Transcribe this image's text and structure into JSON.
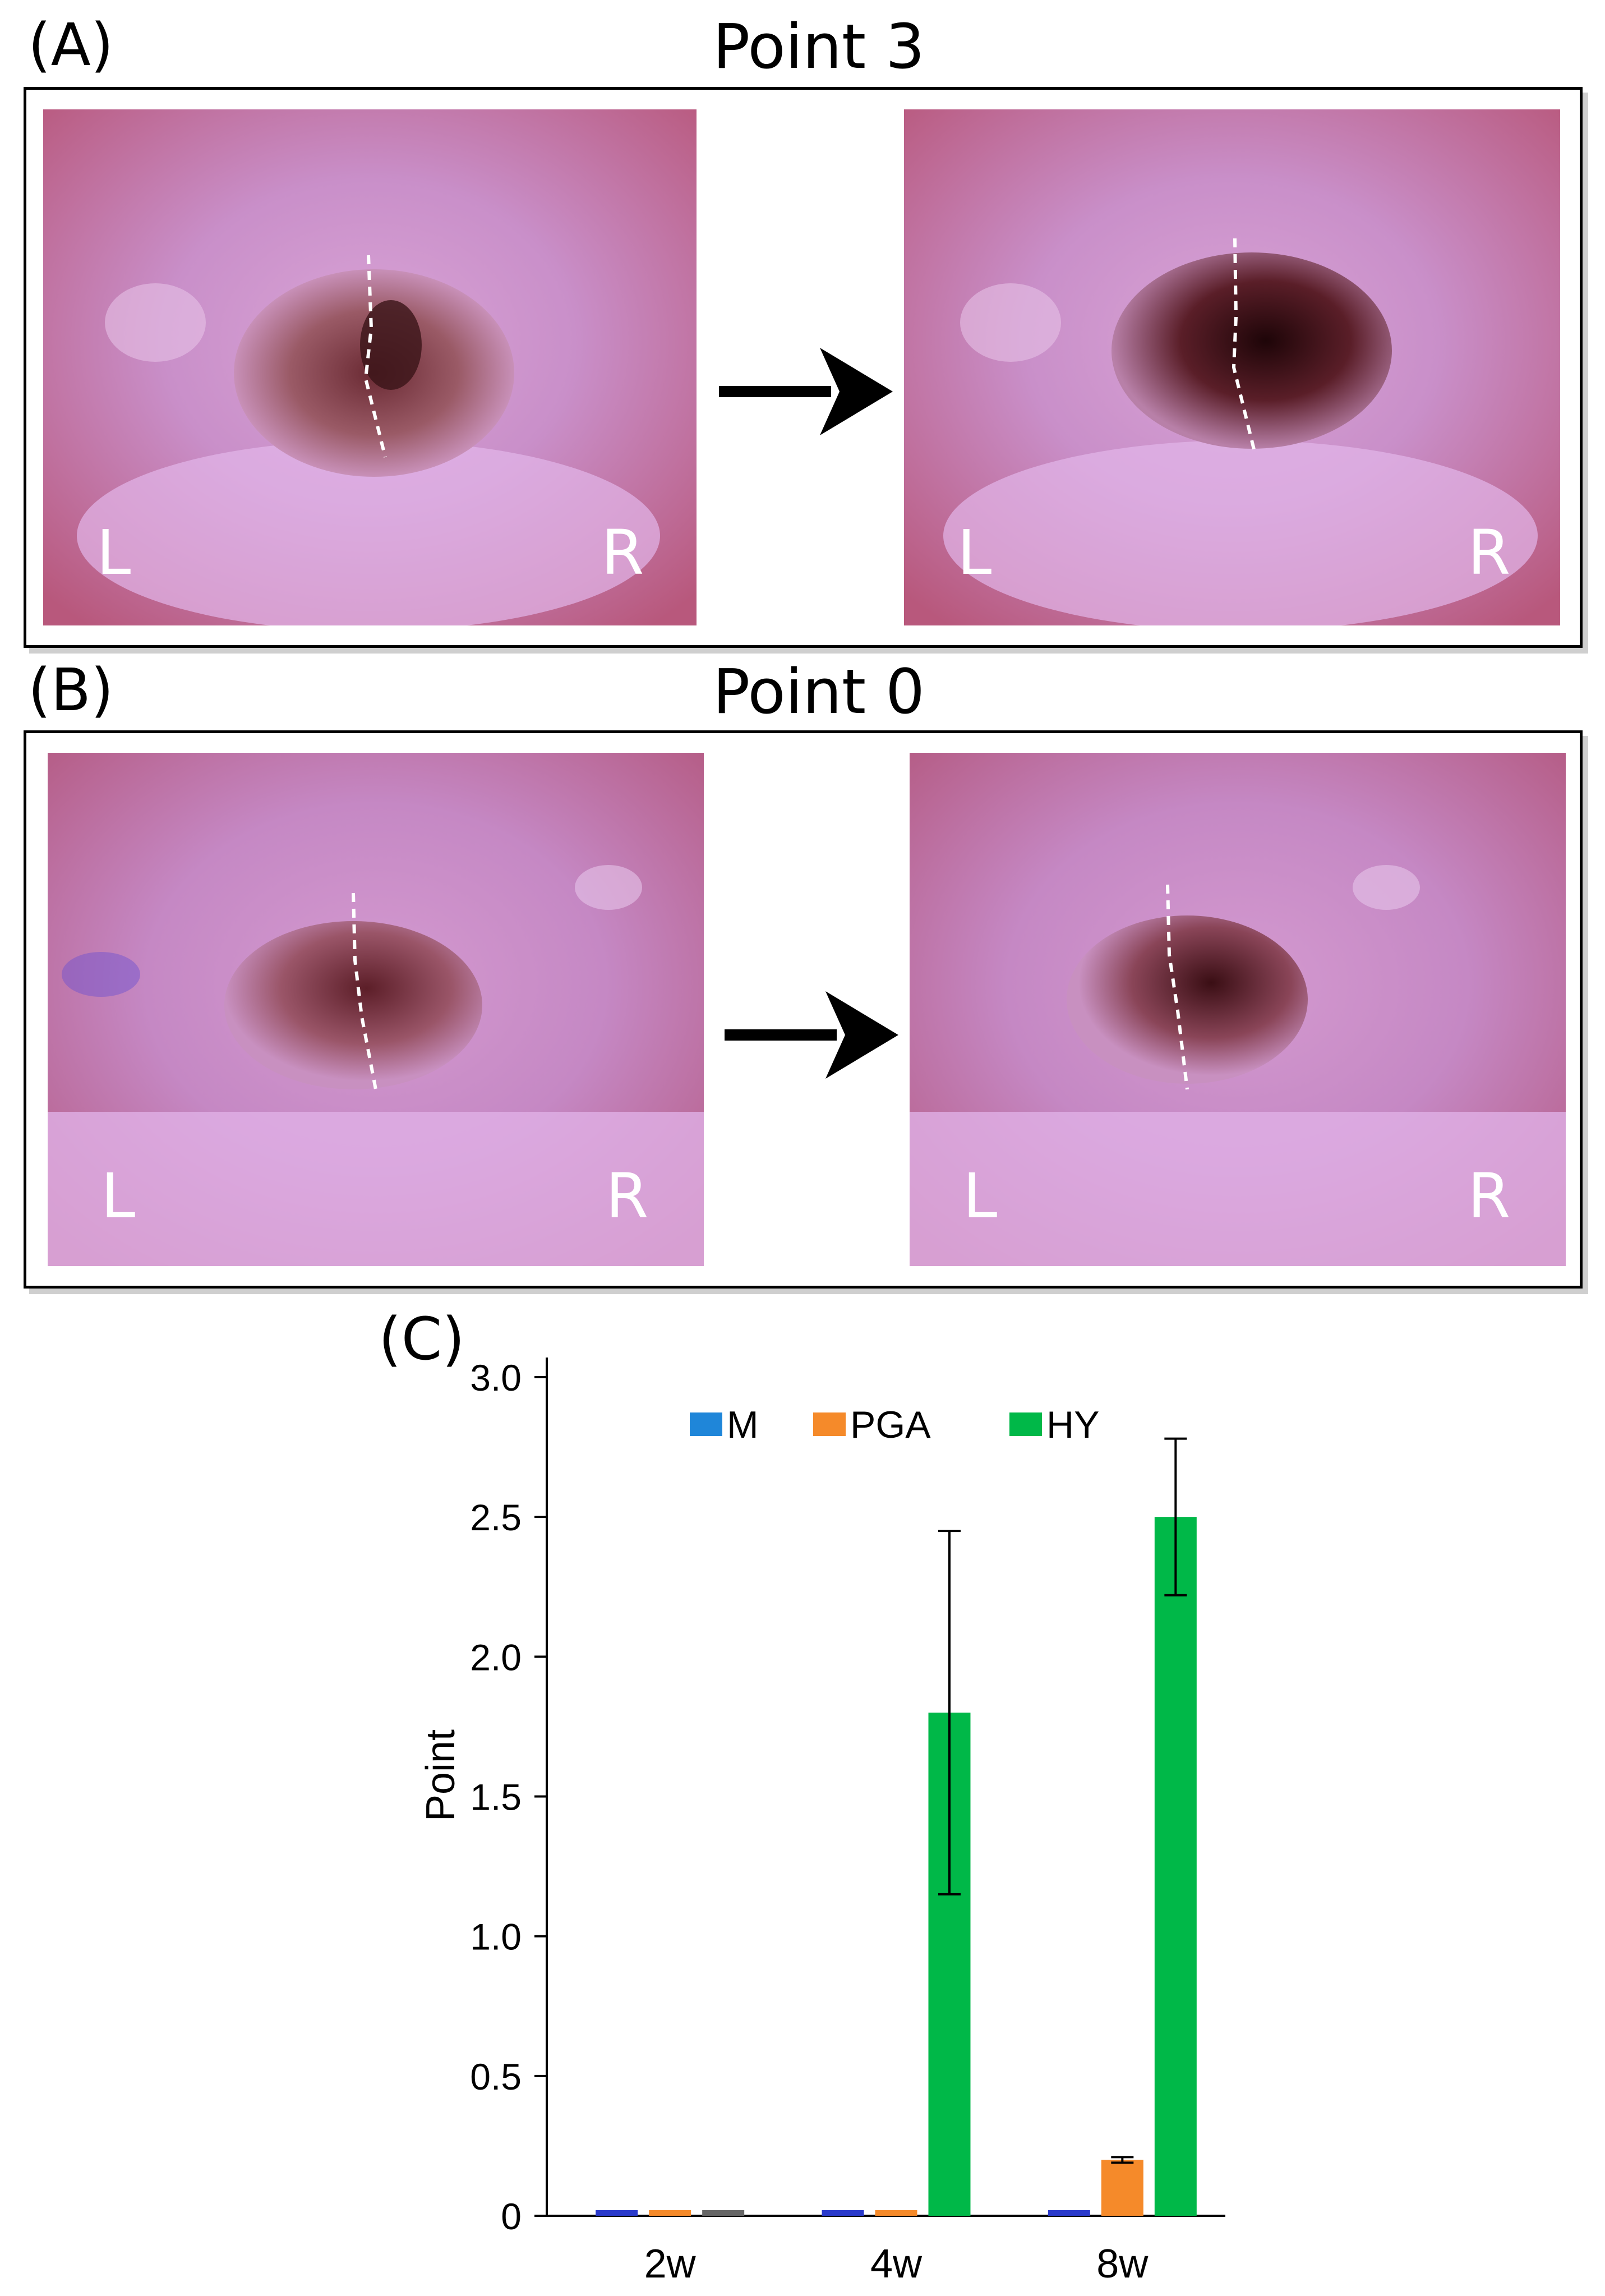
{
  "panels": [
    {
      "label": "(A)",
      "title": "Point 3",
      "before": {
        "left_label": "L",
        "right_label": "R"
      },
      "after": {
        "left_label": "L",
        "right_label": "R"
      }
    },
    {
      "label": "(B)",
      "title": "Point 0",
      "before": {
        "left_label": "L",
        "right_label": "R"
      },
      "after": {
        "left_label": "L",
        "right_label": "R"
      }
    }
  ],
  "chart_label": "(C)",
  "colors": {
    "M": "#1f86d9",
    "PGA": "#f58a2a",
    "HY": "#00b848",
    "photo_bg": "#c4608c"
  },
  "chart_data": {
    "type": "bar",
    "categories": [
      "2w",
      "4w",
      "8w"
    ],
    "series": [
      {
        "name": "M",
        "values": [
          0.02,
          0.02,
          0.02
        ],
        "errors": [
          0,
          0,
          0
        ]
      },
      {
        "name": "PGA",
        "values": [
          0.02,
          0.02,
          0.2
        ],
        "errors": [
          0,
          0,
          0.01
        ]
      },
      {
        "name": "HY",
        "values": [
          0.02,
          1.8,
          2.5
        ],
        "errors": [
          0,
          0.65,
          0.28
        ]
      }
    ],
    "title": "",
    "xlabel": "",
    "ylabel": "Point",
    "ylim": [
      0,
      3.0
    ],
    "yticks": [
      "0",
      "0.5",
      "1.0",
      "1.5",
      "2.0",
      "2.5",
      "3.0"
    ],
    "legend_position": "top",
    "grid": false
  }
}
